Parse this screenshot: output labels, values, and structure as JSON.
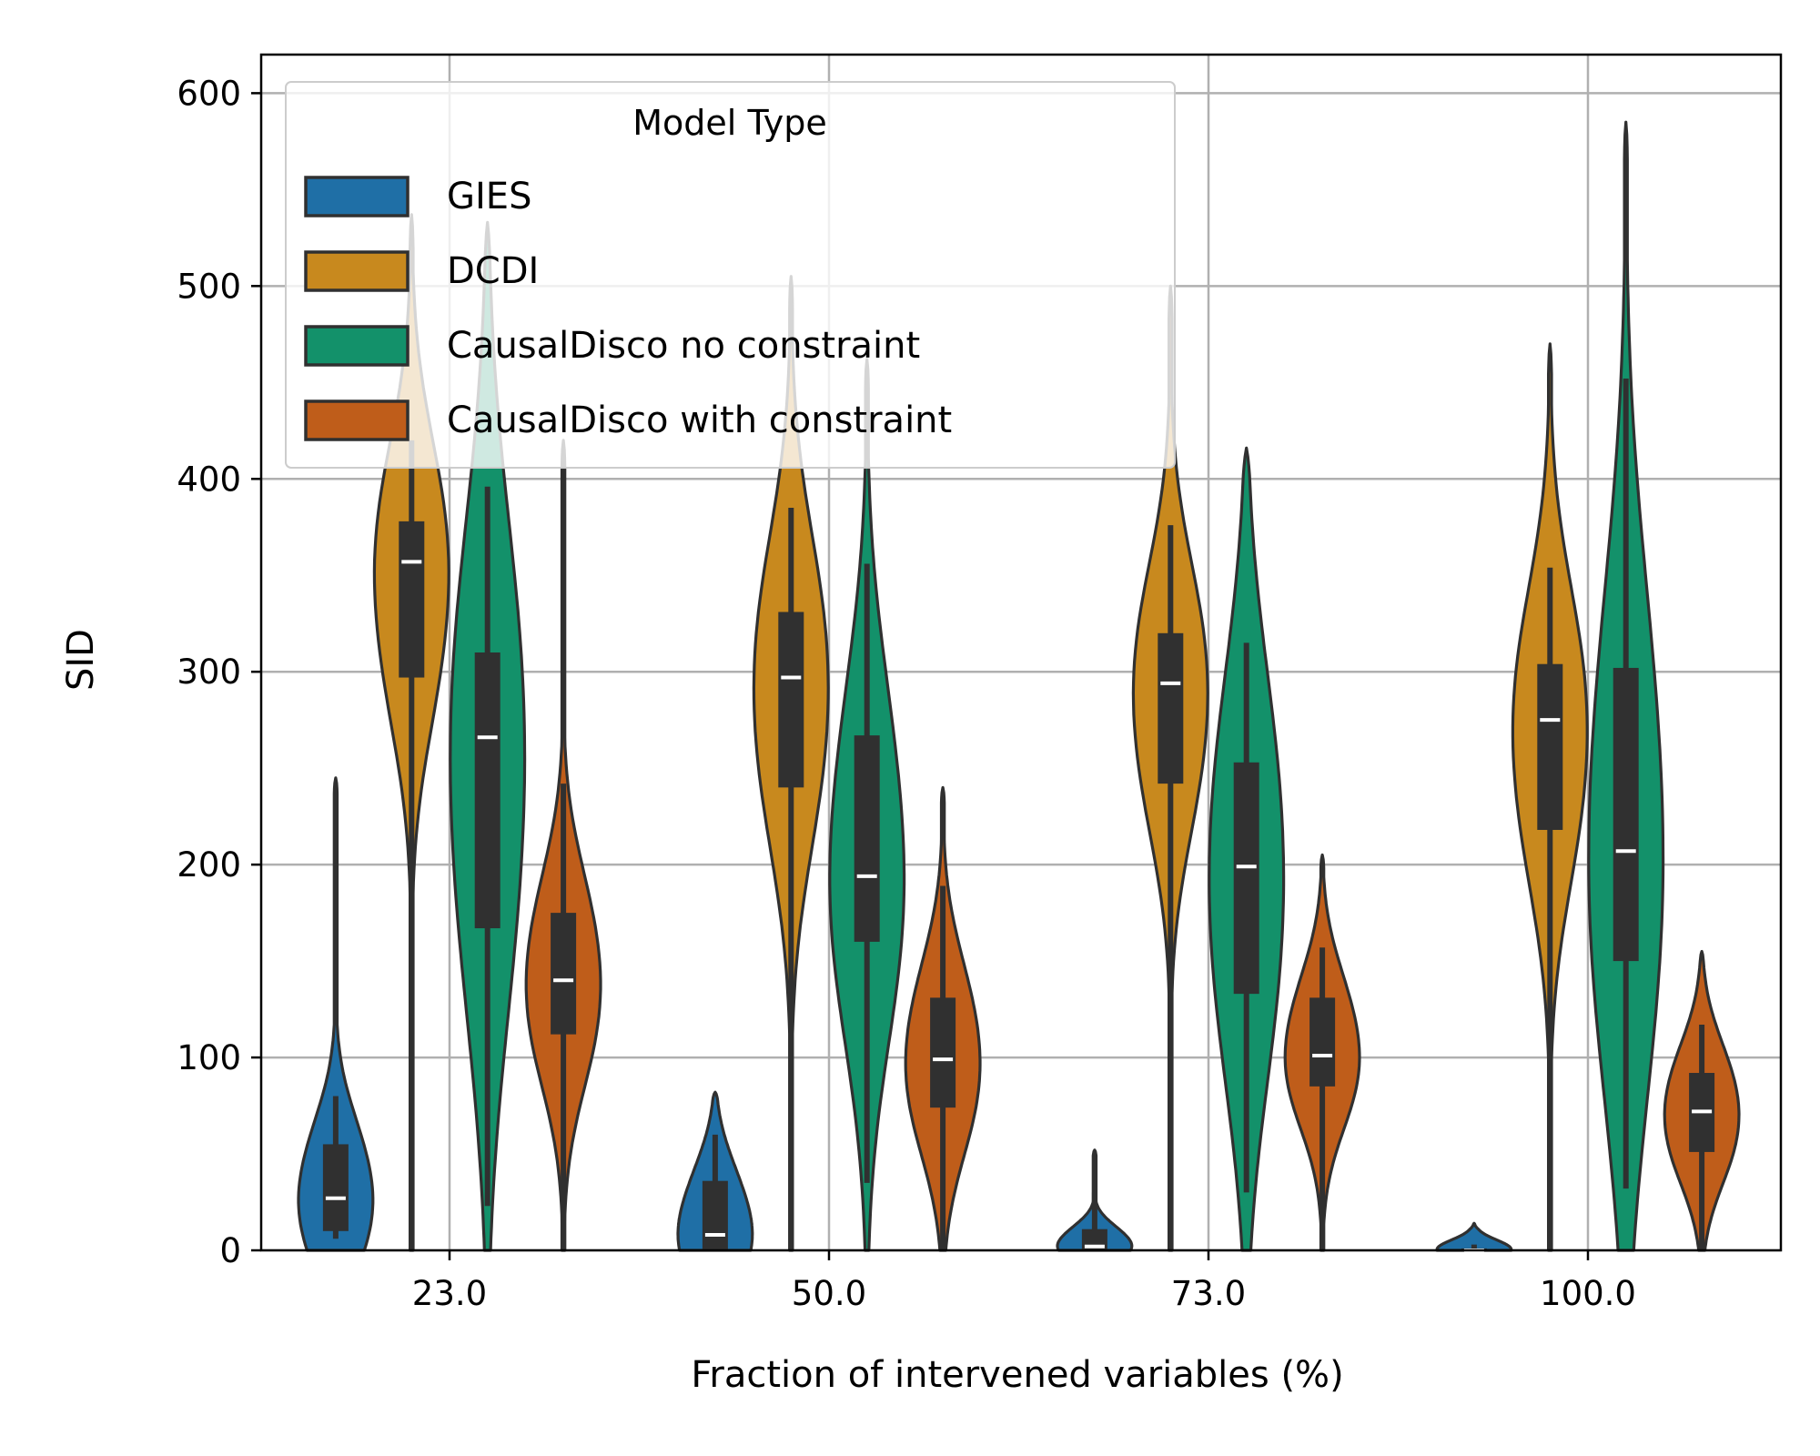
{
  "chart_data": {
    "type": "violin",
    "xlabel": "Fraction of intervened variables (%)",
    "ylabel": "SID",
    "categories": [
      "23.0",
      "50.0",
      "73.0",
      "100.0"
    ],
    "ylim": [
      0,
      620
    ],
    "yticks": [
      0,
      100,
      200,
      300,
      400,
      500,
      600
    ],
    "grid": true,
    "legend": {
      "title": "Model Type",
      "placement": "top-left",
      "items": [
        {
          "label": "GIES",
          "color": "#1f6fa6"
        },
        {
          "label": "DCDI",
          "color": "#c8891e"
        },
        {
          "label": "CausalDisco no constraint",
          "color": "#13916a"
        },
        {
          "label": "CausalDisco with constraint",
          "color": "#bf5d1a"
        }
      ]
    },
    "series": [
      {
        "name": "GIES",
        "color": "#1f6fa6",
        "stats": [
          {
            "min": 0,
            "max": 245,
            "q1": 10,
            "median": 27,
            "q3": 55,
            "whisker_low": 6,
            "whisker_high": 80
          },
          {
            "min": 0,
            "max": 82,
            "q1": 0,
            "median": 8,
            "q3": 36,
            "whisker_low": 0,
            "whisker_high": 60
          },
          {
            "min": 0,
            "max": 52,
            "q1": 0,
            "median": 2,
            "q3": 11,
            "whisker_low": 0,
            "whisker_high": 30
          },
          {
            "min": 0,
            "max": 14,
            "q1": 0,
            "median": 0,
            "q3": 1,
            "whisker_low": 0,
            "whisker_high": 3
          }
        ]
      },
      {
        "name": "DCDI",
        "color": "#c8891e",
        "stats": [
          {
            "min": 0,
            "max": 537,
            "q1": 297,
            "median": 357,
            "q3": 378,
            "whisker_low": 0,
            "whisker_high": 420
          },
          {
            "min": 0,
            "max": 505,
            "q1": 240,
            "median": 297,
            "q3": 331,
            "whisker_low": 0,
            "whisker_high": 385
          },
          {
            "min": 0,
            "max": 500,
            "q1": 242,
            "median": 294,
            "q3": 320,
            "whisker_low": 0,
            "whisker_high": 376
          },
          {
            "min": 0,
            "max": 470,
            "q1": 218,
            "median": 275,
            "q3": 304,
            "whisker_low": 0,
            "whisker_high": 354
          }
        ]
      },
      {
        "name": "CausalDisco no constraint",
        "color": "#13916a",
        "stats": [
          {
            "min": 0,
            "max": 533,
            "q1": 167,
            "median": 266,
            "q3": 310,
            "whisker_low": 23,
            "whisker_high": 396
          },
          {
            "min": 0,
            "max": 462,
            "q1": 160,
            "median": 194,
            "q3": 267,
            "whisker_low": 35,
            "whisker_high": 356
          },
          {
            "min": 0,
            "max": 416,
            "q1": 133,
            "median": 199,
            "q3": 253,
            "whisker_low": 30,
            "whisker_high": 315
          },
          {
            "min": 0,
            "max": 585,
            "q1": 150,
            "median": 207,
            "q3": 302,
            "whisker_low": 32,
            "whisker_high": 452
          }
        ]
      },
      {
        "name": "CausalDisco with constraint",
        "color": "#bf5d1a",
        "stats": [
          {
            "min": 0,
            "max": 420,
            "q1": 112,
            "median": 140,
            "q3": 175,
            "whisker_low": 0,
            "whisker_high": 242
          },
          {
            "min": 0,
            "max": 240,
            "q1": 74,
            "median": 99,
            "q3": 131,
            "whisker_low": 0,
            "whisker_high": 189
          },
          {
            "min": 0,
            "max": 205,
            "q1": 85,
            "median": 101,
            "q3": 131,
            "whisker_low": 0,
            "whisker_high": 157
          },
          {
            "min": 0,
            "max": 155,
            "q1": 51,
            "median": 72,
            "q3": 92,
            "whisker_low": 0,
            "whisker_high": 117
          }
        ]
      }
    ]
  }
}
